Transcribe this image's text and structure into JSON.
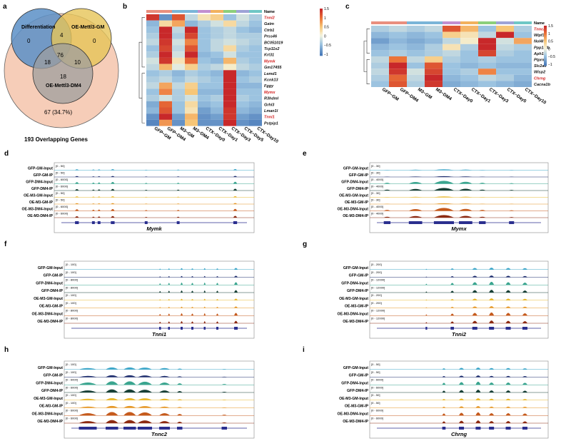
{
  "panel_letters": [
    "a",
    "b",
    "c",
    "d",
    "e",
    "f",
    "g",
    "h",
    "i"
  ],
  "venn": {
    "sets": [
      "Differentiation",
      "OE-Mettl3-GM",
      "OE-Mettl3-DM4"
    ],
    "counts": {
      "diff_only": "0",
      "gm_only": "0",
      "dm4_only": "18",
      "diff_gm": "4",
      "diff_dm4": "18",
      "gm_dm4": "10",
      "all": "76"
    },
    "outer_count": "67 (34.7%)",
    "caption": "193 Overlapping Genes",
    "colors": {
      "diff": "#5b8fc7",
      "gm": "#e6c457",
      "dm4": "#9e9e9e",
      "outer": "#f6cdb8"
    }
  },
  "heatmap_b": {
    "columns": [
      "GFP−GM",
      "GFP−DM4",
      "M3−GM",
      "M3−DM4",
      "CTX−Day0",
      "CTX−Day1",
      "CTX−Day3",
      "CTX−Day5",
      "CTX−Day10"
    ],
    "genes": [
      "Tnni2",
      "Gatm",
      "Ctrb1",
      "Prss46",
      "BC051019",
      "Tcp11x2",
      "Krt31",
      "Mymk",
      "Gm17455",
      "Lemd1",
      "Kcnk13",
      "Fggy",
      "Mymx",
      "R3hdml",
      "Grhl3",
      "Lman1l",
      "Tnni1",
      "Pstpip1"
    ],
    "highlighted": [
      "Tnni2",
      "Mymk",
      "Mymx",
      "Tnni1"
    ],
    "header": "Name",
    "legend_ticks": [
      "1.5",
      "1",
      "0.5",
      "0",
      "−0.5",
      "−1"
    ],
    "values": [
      [
        1.4,
        -0.9,
        1.2,
        -0.3,
        0.2,
        0.4,
        -0.5,
        -0.2,
        -0.4
      ],
      [
        -0.6,
        0.3,
        0.7,
        -0.6,
        -0.4,
        -0.2,
        0.3,
        -0.3,
        -0.5
      ],
      [
        -0.5,
        1.5,
        -0.3,
        1.5,
        -0.5,
        -0.4,
        -0.3,
        -0.5,
        -0.6
      ],
      [
        -0.4,
        1.5,
        -0.4,
        1.3,
        -0.5,
        -0.4,
        -0.3,
        -0.4,
        -0.4
      ],
      [
        -0.3,
        1.4,
        -0.2,
        0.9,
        -0.5,
        -0.3,
        -0.2,
        -0.3,
        -0.4
      ],
      [
        -0.5,
        1.3,
        -0.3,
        1.2,
        -0.5,
        -0.3,
        0.3,
        -0.4,
        -0.5
      ],
      [
        -0.4,
        1.5,
        -0.2,
        1.5,
        -0.6,
        -0.5,
        -0.2,
        -0.5,
        -0.5
      ],
      [
        -0.2,
        1.4,
        0.2,
        1.1,
        -0.5,
        -0.6,
        0.6,
        -0.4,
        -0.5
      ],
      [
        -0.3,
        0.6,
        -0.1,
        0.4,
        -0.4,
        -0.3,
        0.1,
        -0.3,
        -0.4
      ],
      [
        -0.5,
        -0.4,
        -0.6,
        -0.4,
        -0.5,
        -0.6,
        1.5,
        -0.6,
        -0.5
      ],
      [
        -0.4,
        -0.3,
        -0.5,
        -0.3,
        -0.4,
        -0.5,
        1.5,
        -0.5,
        -0.4
      ],
      [
        -0.3,
        0.7,
        -0.3,
        0.4,
        -0.5,
        -0.5,
        1.5,
        -0.6,
        -0.6
      ],
      [
        -0.5,
        0.9,
        -0.4,
        0.5,
        -0.6,
        -0.6,
        1.5,
        -0.5,
        -0.5
      ],
      [
        -0.4,
        -0.2,
        -0.4,
        -0.2,
        -0.5,
        -0.4,
        1.5,
        -0.4,
        -0.5
      ],
      [
        -0.7,
        1.1,
        -0.5,
        0.3,
        -0.6,
        -0.5,
        1.5,
        -0.5,
        -0.6
      ],
      [
        -0.6,
        1.2,
        -0.5,
        0.2,
        -0.8,
        -0.6,
        1.4,
        -0.6,
        -0.7
      ],
      [
        -0.9,
        1.5,
        -0.8,
        0.6,
        -0.9,
        -0.8,
        1.4,
        -0.8,
        -0.9
      ],
      [
        -1.0,
        0.8,
        -0.9,
        0.5,
        -0.9,
        -0.9,
        1.5,
        -0.9,
        -1.0
      ]
    ]
  },
  "heatmap_c": {
    "columns": [
      "GFP−GM",
      "GFP−DM4",
      "M3−GM",
      "M3−DM4",
      "CTX−Day0",
      "CTX−Day1",
      "CTX−Day3",
      "CTX−Day5",
      "CTX−Day10"
    ],
    "genes": [
      "Tnnc2",
      "Wipf3",
      "Nol4l",
      "Ppp1r3b",
      "Aph1c",
      "Ptprn2",
      "Slc2a6",
      "Wisp2",
      "Chrng",
      "Cacna1b"
    ],
    "highlighted": [
      "Tnnc2",
      "Chrng"
    ],
    "header": "Name",
    "legend_ticks": [
      "1.5",
      "1",
      "0.5",
      "0",
      "−0.5",
      "−1"
    ],
    "values": [
      [
        -0.4,
        -0.3,
        -0.4,
        -0.3,
        1.2,
        0.6,
        -0.5,
        0.5,
        -0.4
      ],
      [
        -0.6,
        -0.5,
        -0.6,
        -0.5,
        0.4,
        0.2,
        -0.3,
        1.5,
        -0.5
      ],
      [
        -0.8,
        -0.6,
        -0.7,
        -0.6,
        -0.3,
        0.1,
        1.5,
        -0.2,
        0.7
      ],
      [
        -0.6,
        -0.5,
        -0.6,
        -0.4,
        0.2,
        -0.4,
        1.5,
        -0.3,
        -0.4
      ],
      [
        -0.5,
        -0.4,
        -0.5,
        -0.4,
        -0.3,
        -0.5,
        1.3,
        -0.4,
        -0.5
      ],
      [
        -0.3,
        1.0,
        -0.3,
        0.4,
        -0.4,
        -0.5,
        -0.4,
        -0.5,
        -0.5
      ],
      [
        -0.4,
        1.5,
        -0.5,
        1.2,
        -0.5,
        -0.6,
        -0.5,
        -0.6,
        -0.6
      ],
      [
        -0.3,
        1.4,
        -0.2,
        1.3,
        -0.5,
        -0.4,
        0.9,
        -0.5,
        -0.5
      ],
      [
        -0.4,
        1.1,
        -0.3,
        1.5,
        -0.6,
        -0.5,
        -0.3,
        -0.4,
        -0.6
      ],
      [
        -0.5,
        1.2,
        -0.4,
        1.4,
        -0.7,
        -0.6,
        -0.5,
        -0.6,
        -0.7
      ]
    ]
  },
  "tracks_8": [
    "GFP-GM-Input",
    "GFP-GM-IP",
    "GFP-DM4-Input",
    "GFP-DM4-IP",
    "OE-M3-GM-Input",
    "OE-M3-GM-IP",
    "OE-M3-DM4-Input",
    "OE-M3-DM4-IP"
  ],
  "tracks_d": [
    "GFP-GM-Input",
    "GFP-GM-IP",
    "GFP-DM4-Input",
    "GFP-DM4-IP",
    "OE-M3-GM-Input",
    "OE-M3-GM-IP",
    "OE-M3-DM4-Input",
    "OE-M3-DM4-IP"
  ],
  "tracks_e": [
    "GFP-GM-Input",
    "GFP-GM-IP",
    "GFP-DM4-Input",
    "GFP-DM4-IP",
    "OE-M3-GM-Input",
    "OE-M3-GM-IP",
    "OE-M3-DM4-Input",
    "OE-M3-DM4-IP"
  ],
  "track_colors": [
    "#3fa7c9",
    "#1f2e6e",
    "#3aa58f",
    "#173f35",
    "#e8b930",
    "#e59623",
    "#c55a1c",
    "#8c2a12"
  ],
  "browser": [
    {
      "id": "d",
      "gene": "Mymk",
      "ranges": [
        "[0 - 50]",
        "[0 - 50]",
        "[0 - 6000]",
        "[0 - 6000]",
        "[0 - 50]",
        "[0 - 50]",
        "[0 - 6000]",
        "[0 - 6000]"
      ]
    },
    {
      "id": "e",
      "gene": "Mymx",
      "ranges": [
        "[0 - 30]",
        "[0 - 30]",
        "[0 - 4000]",
        "[0 - 4000]",
        "[0 - 30]",
        "[0 - 30]",
        "[0 - 4000]",
        "[0 - 4000]"
      ]
    },
    {
      "id": "f",
      "gene": "Tnni1",
      "ranges": [
        "[0 - 100]",
        "[0 - 100]",
        "[0 - 8000]",
        "[0 - 8000]",
        "[0 - 100]",
        "[0 - 100]",
        "[0 - 8000]",
        "[0 - 8000]"
      ]
    },
    {
      "id": "g",
      "gene": "Tnni2",
      "ranges": [
        "[0 - 200]",
        "[0 - 200]",
        "[0 - 12000]",
        "[0 - 12000]",
        "[0 - 200]",
        "[0 - 200]",
        "[0 - 12000]",
        "[0 - 12000]"
      ]
    },
    {
      "id": "h",
      "gene": "Tnnc2",
      "ranges": [
        "[0 - 100]",
        "[0 - 100]",
        "[0 - 6000]",
        "[0 - 6000]",
        "[0 - 100]",
        "[0 - 100]",
        "[0 - 6000]",
        "[0 - 6000]"
      ]
    },
    {
      "id": "i",
      "gene": "Chrng",
      "ranges": [
        "[0 - 50]",
        "[0 - 50]",
        "[0 - 6000]",
        "[0 - 6000]",
        "[0 - 50]",
        "[0 - 50]",
        "[0 - 6000]",
        "[0 - 6000]"
      ]
    }
  ]
}
